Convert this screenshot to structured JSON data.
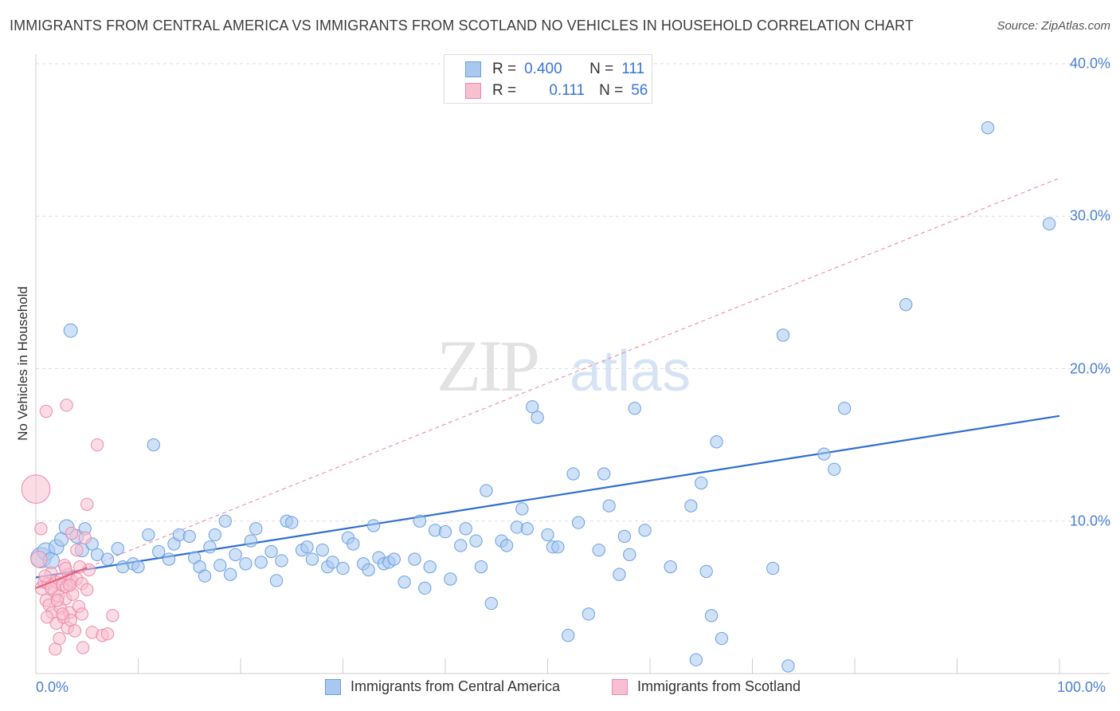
{
  "title": "IMMIGRANTS FROM CENTRAL AMERICA VS IMMIGRANTS FROM SCOTLAND NO VEHICLES IN HOUSEHOLD CORRELATION CHART",
  "source": "Source: ZipAtlas.com",
  "watermark": {
    "zip": "ZIP",
    "atlas": "atlas"
  },
  "legend": {
    "rows": [
      {
        "r_label": "R =",
        "r_value": "0.400",
        "n_label": "N =",
        "n_value": "111",
        "color": "#a8c8f0",
        "border": "#6a9fe0"
      },
      {
        "r_label": "R =",
        "r_value": "0.111",
        "n_label": "N =",
        "n_value": "56",
        "color": "#f8bfd0",
        "border": "#ee88a8"
      }
    ]
  },
  "bottom_legend": [
    {
      "label": "Immigrants from Central America",
      "color": "#a8c8f0",
      "border": "#6a9fe0"
    },
    {
      "label": "Immigrants from Scotland",
      "color": "#f8bfd0",
      "border": "#ee88a8"
    }
  ],
  "chart_data": {
    "type": "scatter",
    "title": "IMMIGRANTS FROM CENTRAL AMERICA VS IMMIGRANTS FROM SCOTLAND NO VEHICLES IN HOUSEHOLD CORRELATION CHART",
    "xlabel": "",
    "ylabel": "No Vehicles in Household",
    "xlim": [
      0,
      100
    ],
    "ylim": [
      0,
      40
    ],
    "x_tick_labels": [
      "0.0%",
      "100.0%"
    ],
    "y_ticks": [
      10,
      20,
      30,
      40
    ],
    "y_tick_labels": [
      "10.0%",
      "20.0%",
      "30.0%",
      "40.0%"
    ],
    "grid": true,
    "series": [
      {
        "name": "Immigrants from Central America",
        "color": "#6a9fe0",
        "fill": "#a8c8f0",
        "trend": {
          "x": [
            0,
            100
          ],
          "y": [
            6.3,
            16.9
          ],
          "dashed": false
        },
        "points": [
          [
            0.5,
            7.6,
            1.5
          ],
          [
            1.0,
            8.0,
            1.3
          ],
          [
            1.5,
            7.4,
            1.2
          ],
          [
            2.0,
            8.3,
            1.1
          ],
          [
            2.5,
            8.8,
            1.0
          ],
          [
            3.0,
            9.6,
            1.1
          ],
          [
            3.4,
            22.5,
            1.0
          ],
          [
            4.0,
            9.0,
            1.0
          ],
          [
            4.5,
            8.1,
            1.0
          ],
          [
            4.8,
            9.5,
            0.9
          ],
          [
            5.5,
            8.5,
            0.9
          ],
          [
            6.0,
            7.8,
            0.9
          ],
          [
            7.0,
            7.5,
            0.9
          ],
          [
            8.0,
            8.2,
            0.9
          ],
          [
            8.5,
            7.0,
            0.9
          ],
          [
            9.5,
            7.2,
            0.9
          ],
          [
            10.0,
            7.0,
            0.9
          ],
          [
            11.0,
            9.1,
            0.9
          ],
          [
            11.5,
            15.0,
            0.9
          ],
          [
            12.0,
            8.0,
            0.9
          ],
          [
            13.0,
            7.5,
            0.9
          ],
          [
            13.5,
            8.5,
            0.9
          ],
          [
            14.0,
            9.1,
            0.9
          ],
          [
            15.0,
            9.0,
            0.9
          ],
          [
            15.5,
            7.6,
            0.9
          ],
          [
            16.0,
            7.0,
            0.9
          ],
          [
            16.5,
            6.4,
            0.9
          ],
          [
            17.0,
            8.3,
            0.9
          ],
          [
            17.5,
            9.1,
            0.9
          ],
          [
            18.0,
            7.1,
            0.9
          ],
          [
            18.5,
            10.0,
            0.9
          ],
          [
            19.0,
            6.5,
            0.9
          ],
          [
            19.5,
            7.8,
            0.9
          ],
          [
            20.5,
            7.2,
            0.9
          ],
          [
            21.0,
            8.7,
            0.9
          ],
          [
            21.5,
            9.5,
            0.9
          ],
          [
            22.0,
            7.3,
            0.9
          ],
          [
            23.0,
            8.0,
            0.9
          ],
          [
            23.5,
            6.1,
            0.9
          ],
          [
            24.0,
            7.4,
            0.9
          ],
          [
            24.5,
            10.0,
            0.9
          ],
          [
            25.0,
            9.9,
            0.9
          ],
          [
            26.0,
            8.1,
            0.9
          ],
          [
            26.5,
            8.3,
            0.9
          ],
          [
            27.0,
            7.5,
            0.9
          ],
          [
            28.0,
            8.1,
            0.9
          ],
          [
            28.5,
            7.0,
            0.9
          ],
          [
            29.0,
            7.3,
            0.9
          ],
          [
            30.0,
            6.9,
            0.9
          ],
          [
            30.5,
            8.9,
            0.9
          ],
          [
            31.0,
            8.5,
            0.9
          ],
          [
            32.0,
            7.2,
            0.9
          ],
          [
            32.5,
            6.8,
            0.9
          ],
          [
            33.0,
            9.7,
            0.9
          ],
          [
            33.5,
            7.6,
            0.9
          ],
          [
            34.0,
            7.2,
            0.9
          ],
          [
            34.5,
            7.3,
            0.9
          ],
          [
            35.0,
            7.5,
            0.9
          ],
          [
            36.0,
            6.0,
            0.9
          ],
          [
            37.0,
            7.5,
            0.9
          ],
          [
            37.5,
            10.0,
            0.9
          ],
          [
            38.0,
            5.6,
            0.9
          ],
          [
            38.5,
            7.0,
            0.9
          ],
          [
            39.0,
            9.4,
            0.9
          ],
          [
            40.0,
            9.3,
            0.9
          ],
          [
            40.5,
            6.2,
            0.9
          ],
          [
            41.5,
            8.4,
            0.9
          ],
          [
            42.0,
            9.5,
            0.9
          ],
          [
            43.0,
            8.7,
            0.9
          ],
          [
            43.5,
            7.0,
            0.9
          ],
          [
            44.0,
            12.0,
            0.9
          ],
          [
            44.5,
            4.6,
            0.9
          ],
          [
            45.5,
            8.7,
            0.9
          ],
          [
            46.0,
            8.4,
            0.9
          ],
          [
            47.0,
            9.6,
            0.9
          ],
          [
            47.5,
            10.8,
            0.9
          ],
          [
            48.0,
            9.5,
            0.9
          ],
          [
            48.5,
            17.5,
            0.9
          ],
          [
            49.0,
            16.8,
            0.9
          ],
          [
            50.0,
            9.1,
            0.9
          ],
          [
            50.5,
            8.3,
            0.9
          ],
          [
            51.0,
            8.3,
            0.9
          ],
          [
            52.0,
            2.5,
            0.9
          ],
          [
            52.5,
            13.1,
            0.9
          ],
          [
            53.0,
            9.9,
            0.9
          ],
          [
            54.0,
            3.9,
            0.9
          ],
          [
            55.0,
            8.1,
            0.9
          ],
          [
            55.5,
            13.1,
            0.9
          ],
          [
            56.0,
            11.0,
            0.9
          ],
          [
            57.0,
            6.5,
            0.9
          ],
          [
            57.5,
            9.0,
            0.9
          ],
          [
            58.0,
            7.8,
            0.9
          ],
          [
            58.5,
            17.4,
            0.9
          ],
          [
            59.5,
            9.4,
            0.9
          ],
          [
            62.0,
            7.0,
            0.9
          ],
          [
            64.0,
            11.0,
            0.9
          ],
          [
            64.5,
            0.9,
            0.9
          ],
          [
            65.0,
            12.5,
            0.9
          ],
          [
            65.5,
            6.7,
            0.9
          ],
          [
            66.0,
            3.8,
            0.9
          ],
          [
            66.5,
            15.2,
            0.9
          ],
          [
            67.0,
            2.3,
            0.9
          ],
          [
            72.0,
            6.9,
            0.9
          ],
          [
            73.0,
            22.2,
            0.9
          ],
          [
            77.0,
            14.4,
            0.9
          ],
          [
            78.0,
            13.4,
            0.9
          ],
          [
            79.0,
            17.4,
            0.9
          ],
          [
            85.0,
            24.2,
            0.9
          ],
          [
            93.0,
            35.8,
            0.9
          ],
          [
            99.0,
            29.5,
            0.9
          ],
          [
            73.5,
            0.5,
            0.9
          ]
        ]
      },
      {
        "name": "Immigrants from Scotland",
        "color": "#ee88a8",
        "fill": "#f8bfd0",
        "trend": {
          "x": [
            0,
            100
          ],
          "y": [
            5.6,
            32.5
          ],
          "dashed": true,
          "solid_until": 5
        },
        "points": [
          [
            0.0,
            12.1,
            2.1
          ],
          [
            0.3,
            7.5,
            1.2
          ],
          [
            0.5,
            9.5,
            0.9
          ],
          [
            0.6,
            5.6,
            1.0
          ],
          [
            0.8,
            6.0,
            0.9
          ],
          [
            1.0,
            4.8,
            0.9
          ],
          [
            1.0,
            17.2,
            0.9
          ],
          [
            1.2,
            5.9,
            0.9
          ],
          [
            1.3,
            4.5,
            0.9
          ],
          [
            1.5,
            6.6,
            0.9
          ],
          [
            1.6,
            4.0,
            0.9
          ],
          [
            1.8,
            5.4,
            0.9
          ],
          [
            1.9,
            1.6,
            0.9
          ],
          [
            2.0,
            6.0,
            0.9
          ],
          [
            2.0,
            3.3,
            0.9
          ],
          [
            2.2,
            5.1,
            0.9
          ],
          [
            2.3,
            2.3,
            0.9
          ],
          [
            2.4,
            4.3,
            0.9
          ],
          [
            2.5,
            6.2,
            0.9
          ],
          [
            2.6,
            5.8,
            0.9
          ],
          [
            2.7,
            3.7,
            0.9
          ],
          [
            2.8,
            7.1,
            0.9
          ],
          [
            2.9,
            4.9,
            0.9
          ],
          [
            3.0,
            17.6,
            0.9
          ],
          [
            3.0,
            5.7,
            0.9
          ],
          [
            3.1,
            3.0,
            0.9
          ],
          [
            3.2,
            6.5,
            0.9
          ],
          [
            3.3,
            4.0,
            0.9
          ],
          [
            3.4,
            3.5,
            0.9
          ],
          [
            3.5,
            6.1,
            0.9
          ],
          [
            3.5,
            9.2,
            0.9
          ],
          [
            3.6,
            5.2,
            0.9
          ],
          [
            3.8,
            2.8,
            0.9
          ],
          [
            4.0,
            6.2,
            0.9
          ],
          [
            4.0,
            8.1,
            0.9
          ],
          [
            4.2,
            4.4,
            0.9
          ],
          [
            4.5,
            5.9,
            0.9
          ],
          [
            4.5,
            3.9,
            0.9
          ],
          [
            4.6,
            1.7,
            0.9
          ],
          [
            4.8,
            8.9,
            0.9
          ],
          [
            5.0,
            11.1,
            0.9
          ],
          [
            5.0,
            5.5,
            0.9
          ],
          [
            5.2,
            6.8,
            0.9
          ],
          [
            5.5,
            2.7,
            0.9
          ],
          [
            6.0,
            15.0,
            0.9
          ],
          [
            6.5,
            2.5,
            0.9
          ],
          [
            7.0,
            2.6,
            0.9
          ],
          [
            7.5,
            3.8,
            0.9
          ],
          [
            1.5,
            5.6,
            0.9
          ],
          [
            2.1,
            4.8,
            0.9
          ],
          [
            2.6,
            3.9,
            0.9
          ],
          [
            3.3,
            5.8,
            0.9
          ],
          [
            1.1,
            3.7,
            0.9
          ],
          [
            4.3,
            7.0,
            0.9
          ],
          [
            2.9,
            6.9,
            0.9
          ],
          [
            0.9,
            6.4,
            0.9
          ]
        ]
      }
    ]
  }
}
